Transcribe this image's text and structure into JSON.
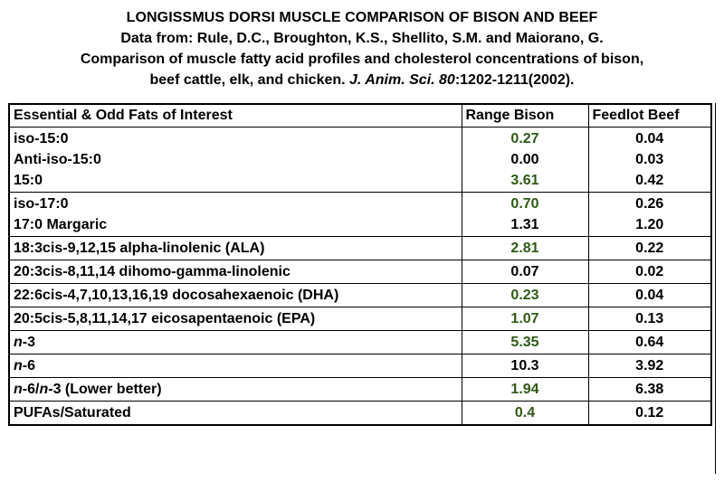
{
  "header": {
    "title": "LONGISSMUS DORSI MUSCLE COMPARISON OF BISON AND BEEF",
    "line2": "Data from: Rule, D.C., Broughton, K.S., Shellito, S.M. and Maiorano, G.",
    "line3": "Comparison of muscle fatty acid profiles and cholesterol concentrations of bison,",
    "line4_prefix": "beef cattle, elk, and chicken. ",
    "line4_journal": "J. Anim. Sci. 80",
    "line4_suffix": ":1202-1211(2002)."
  },
  "table": {
    "col1": "Essential & Odd Fats of Interest",
    "col2": "Range Bison",
    "col3": "Feedlot Beef",
    "groups": [
      {
        "rows": [
          {
            "label": "iso-15:0",
            "bison": "0.27",
            "beef": "0.04",
            "bison_color": "green"
          },
          {
            "label": "Anti-iso-15:0",
            "bison": "0.00",
            "beef": "0.03",
            "bison_color": "black"
          },
          {
            "label": "15:0",
            "bison": "3.61",
            "beef": "0.42",
            "bison_color": "green"
          }
        ]
      },
      {
        "rows": [
          {
            "label": "iso-17:0",
            "bison": "0.70",
            "beef": "0.26",
            "bison_color": "green"
          },
          {
            "label": "17:0 Margaric",
            "bison": "1.31",
            "beef": "1.20",
            "bison_color": "black"
          }
        ]
      },
      {
        "rows": [
          {
            "label": "18:3cis-9,12,15 alpha-linolenic (ALA)",
            "bison": "2.81",
            "beef": "0.22",
            "bison_color": "green"
          }
        ]
      },
      {
        "rows": [
          {
            "label": "20:3cis-8,11,14 dihomo-gamma-linolenic",
            "bison": "0.07",
            "beef": "0.02",
            "bison_color": "black"
          }
        ]
      },
      {
        "rows": [
          {
            "label": "22:6cis-4,7,10,13,16,19 docosahexaenoic (DHA)",
            "bison": "0.23",
            "beef": "0.04",
            "bison_color": "green"
          }
        ]
      },
      {
        "rows": [
          {
            "label": "20:5cis-5,8,11,14,17 eicosapentaenoic (EPA)",
            "bison": "1.07",
            "beef": "0.13",
            "bison_color": "green"
          }
        ]
      },
      {
        "rows": [
          {
            "label_italic": "n",
            "label_rest": "-3",
            "bison": "5.35",
            "beef": "0.64",
            "bison_color": "green"
          }
        ]
      },
      {
        "rows": [
          {
            "label_italic": "n",
            "label_rest": "-6",
            "bison": "10.3",
            "beef": "3.92",
            "bison_color": "black"
          }
        ]
      },
      {
        "rows": [
          {
            "label_italic": "n",
            "label_rest": "-6/",
            "label_italic2": "n",
            "label_rest2": "-3 (Lower better)",
            "bison": "1.94",
            "beef": "6.38",
            "bison_color": "green"
          }
        ]
      },
      {
        "rows": [
          {
            "label": "PUFAs/Saturated",
            "bison": "0.4",
            "beef": "0.12",
            "bison_color": "green"
          }
        ]
      }
    ]
  },
  "colors": {
    "green": "#2e5a15",
    "black": "#000000"
  }
}
